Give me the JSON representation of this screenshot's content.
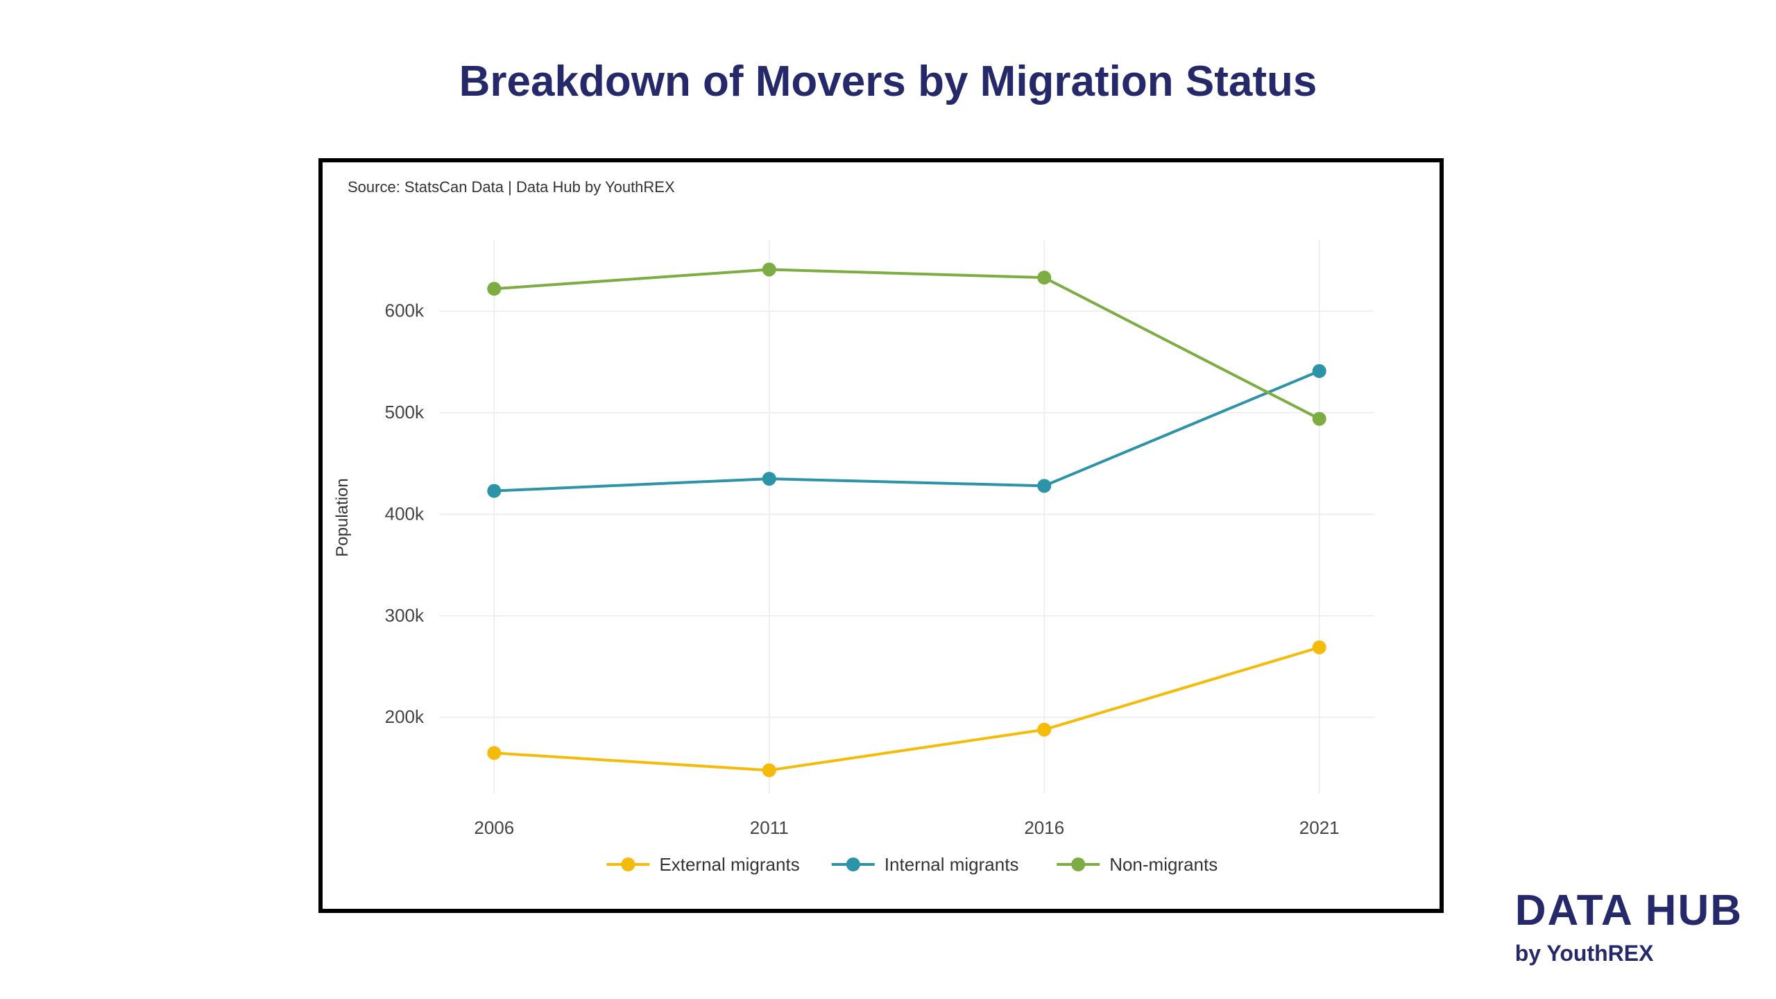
{
  "page_title": "Breakdown of Movers by Migration Status",
  "brand": {
    "name": "DATA HUB",
    "tagline": "by YouthREX"
  },
  "colors": {
    "title": "#25296a",
    "frame": "#000000",
    "grid": "#ebebeb"
  },
  "chart_data": {
    "type": "line",
    "title": "",
    "source_note": "Source: StatsCan Data | Data Hub by YouthREX",
    "xlabel": "",
    "ylabel": "Population",
    "x": [
      2006,
      2011,
      2016,
      2021
    ],
    "x_tick_labels": [
      "2006",
      "2011",
      "2016",
      "2021"
    ],
    "xlim": [
      2005,
      2022
    ],
    "ylim": [
      125000,
      670000
    ],
    "y_ticks": [
      200000,
      300000,
      400000,
      500000,
      600000
    ],
    "y_tick_labels": [
      "200k",
      "300k",
      "400k",
      "500k",
      "600k"
    ],
    "grid": true,
    "legend_position": "bottom",
    "series": [
      {
        "name": "External migrants",
        "color": "#f5bb0b",
        "values": [
          165000,
          148000,
          188000,
          269000
        ]
      },
      {
        "name": "Internal migrants",
        "color": "#2d93a6",
        "values": [
          423000,
          435000,
          428000,
          541000
        ]
      },
      {
        "name": "Non-migrants",
        "color": "#7dac43",
        "values": [
          622000,
          641000,
          633000,
          494000
        ]
      }
    ]
  }
}
